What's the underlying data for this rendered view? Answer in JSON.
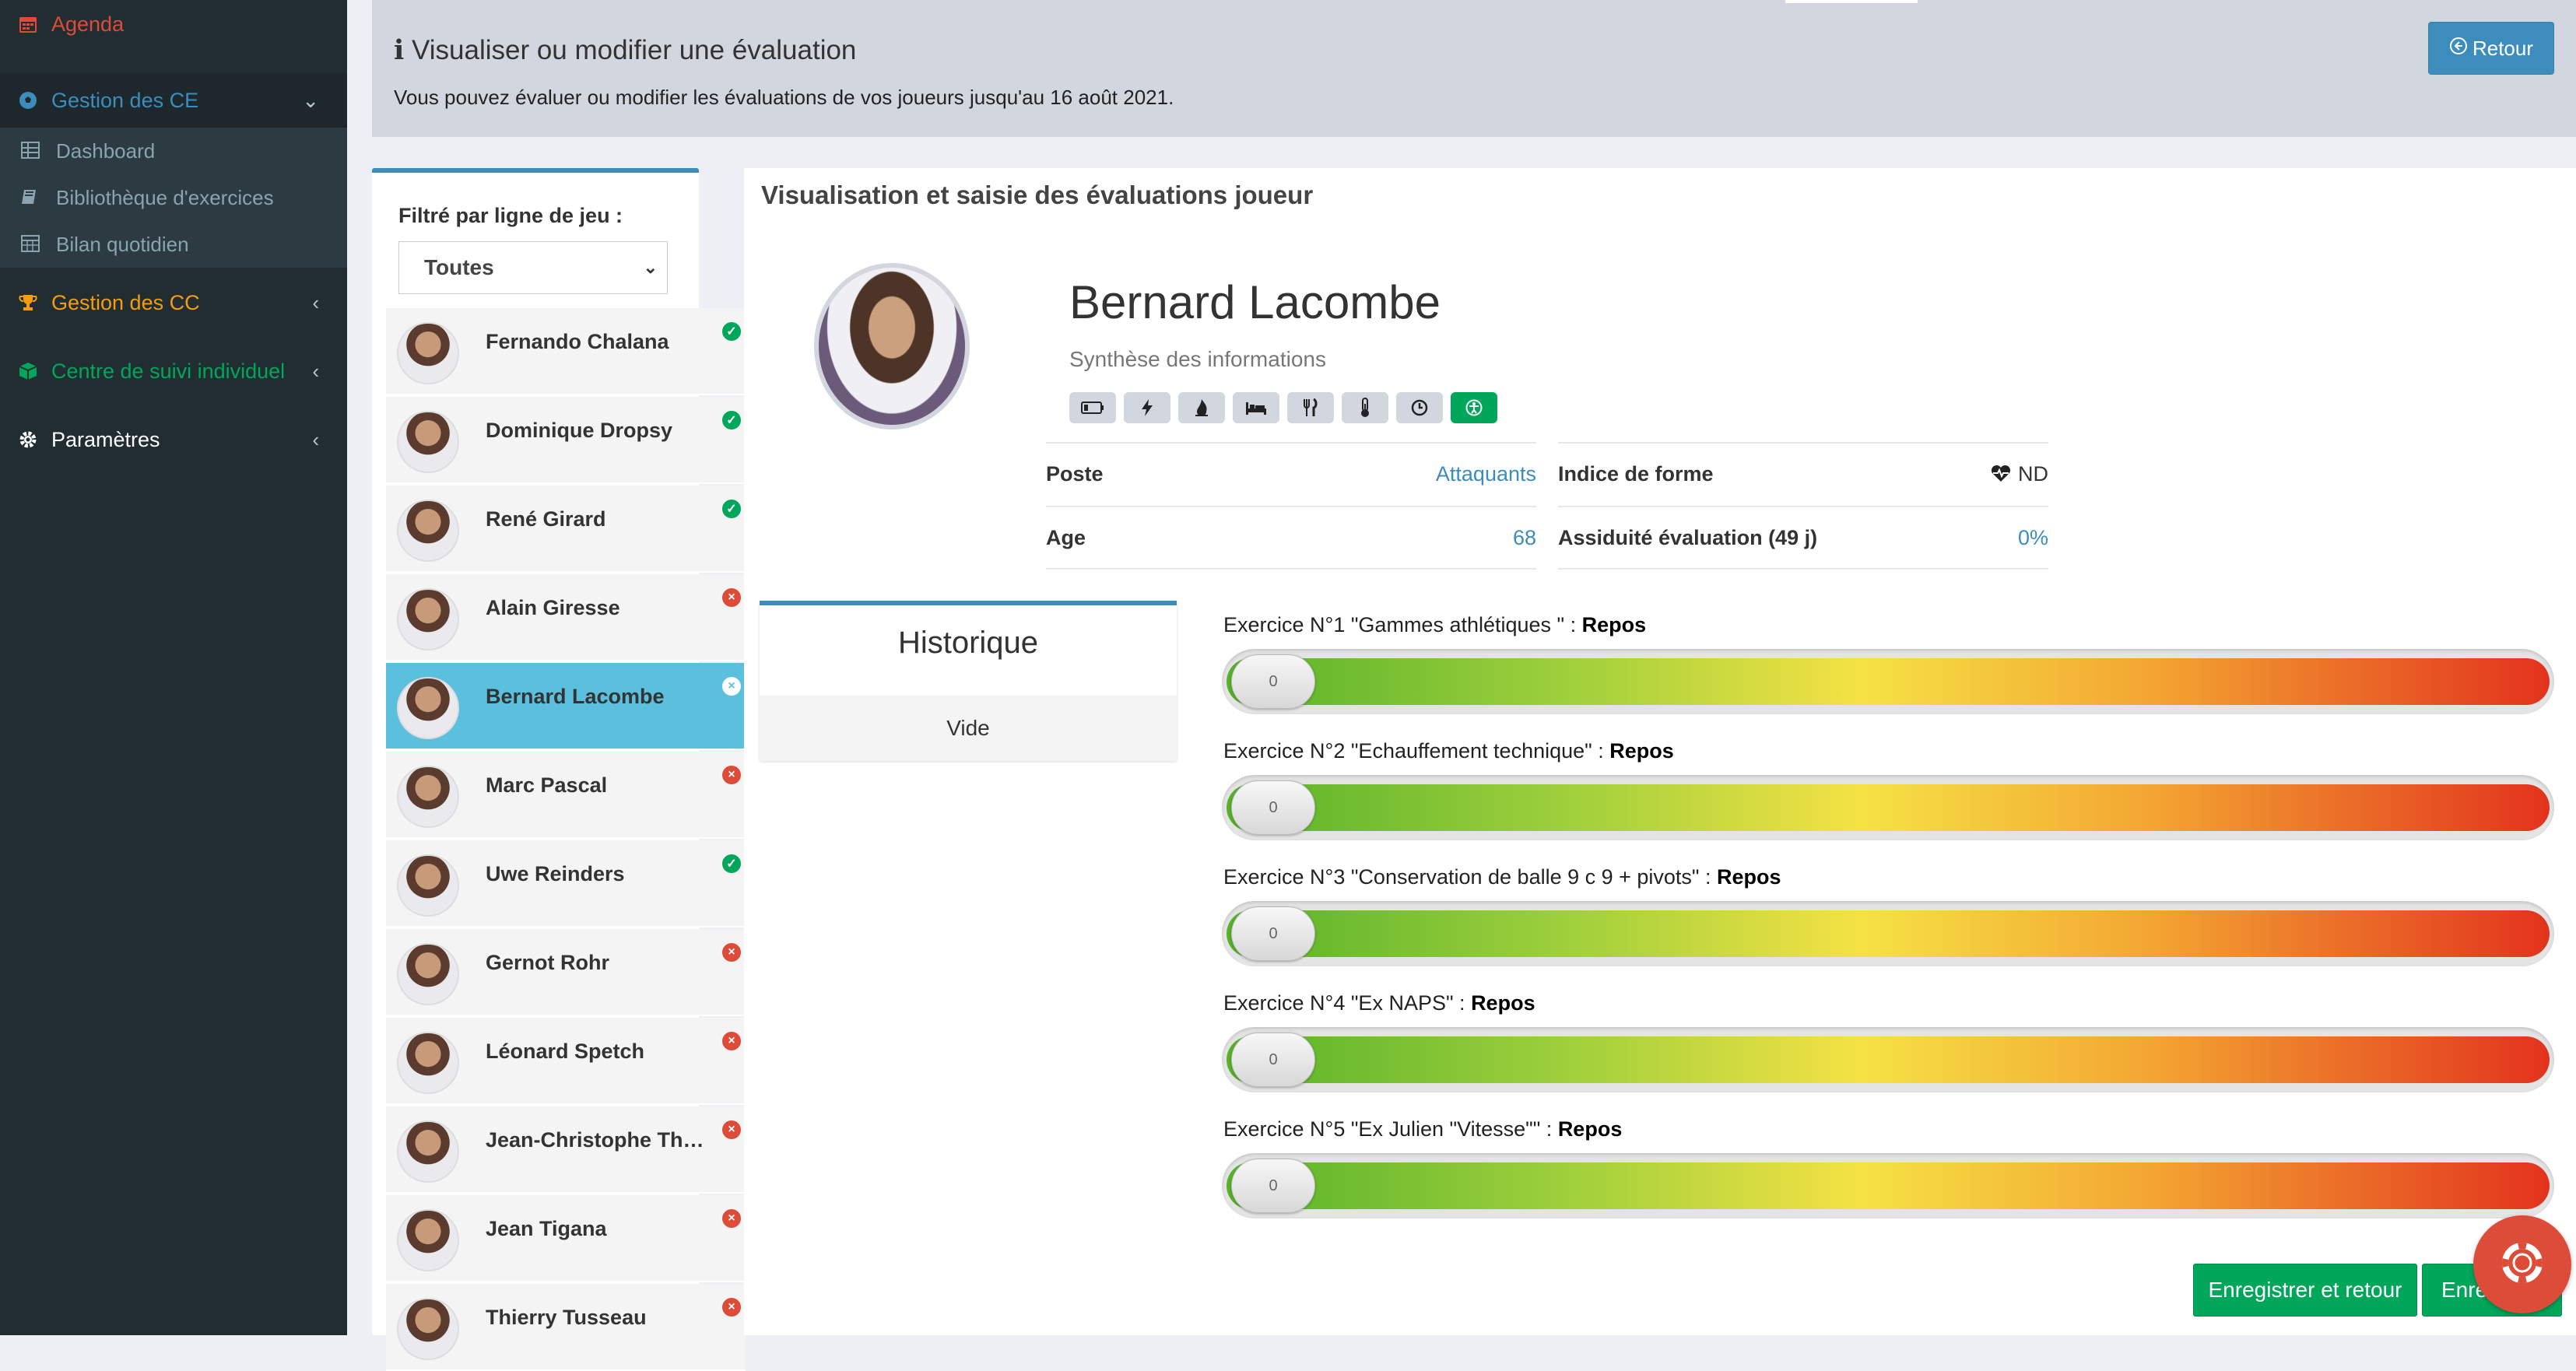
{
  "sidebar": {
    "agenda": "Agenda",
    "gestion_ce": "Gestion des CE",
    "sub_items": [
      {
        "label": "Dashboard",
        "icon": "table-icon"
      },
      {
        "label": "Bibliothèque d'exercices",
        "icon": "book-icon"
      },
      {
        "label": "Bilan quotidien",
        "icon": "calendar-grid-icon"
      }
    ],
    "gestion_cc": "Gestion des CC",
    "centre_suivi": "Centre de suivi individuel",
    "parametres": "Paramètres"
  },
  "header": {
    "title": "Visualiser ou modifier une évaluation",
    "subtitle": "Vous pouvez évaluer ou modifier les évaluations de vos joueurs jusqu'au 16 août 2021.",
    "retour_button": "Retour"
  },
  "filter": {
    "label": "Filtré par ligne de jeu :",
    "selected": "Toutes"
  },
  "players": [
    {
      "name": "Fernando Chalana",
      "status": "ok"
    },
    {
      "name": "Dominique Dropsy",
      "status": "ok"
    },
    {
      "name": "René Girard",
      "status": "ok"
    },
    {
      "name": "Alain Giresse",
      "status": "ko"
    },
    {
      "name": "Bernard Lacombe",
      "status": "ko",
      "active": true
    },
    {
      "name": "Marc Pascal",
      "status": "ko"
    },
    {
      "name": "Uwe Reinders",
      "status": "ok"
    },
    {
      "name": "Gernot Rohr",
      "status": "ko"
    },
    {
      "name": "Léonard Spetch",
      "status": "ko"
    },
    {
      "name": "Jean-Christophe Thouvenel",
      "status": "ko"
    },
    {
      "name": "Jean Tigana",
      "status": "ko"
    },
    {
      "name": "Thierry Tusseau",
      "status": "ko"
    }
  ],
  "main": {
    "title": "Visualisation et saisie des évaluations joueur",
    "player_name": "Bernard Lacombe",
    "synthesis": "Synthèse des informations",
    "icons": [
      "battery-icon",
      "bolt-icon",
      "fire-icon",
      "bed-icon",
      "utensils-icon",
      "thermometer-icon",
      "clock-icon",
      "accessibility-icon"
    ],
    "info": {
      "poste_label": "Poste",
      "poste_value": "Attaquants",
      "age_label": "Age",
      "age_value": "68",
      "forme_label": "Indice de forme",
      "forme_value": "ND",
      "assiduite_label": "Assiduité évaluation (49 j)",
      "assiduite_value": "0%"
    }
  },
  "historique": {
    "title": "Historique",
    "empty": "Vide"
  },
  "exercises": [
    {
      "prefix": "Exercice N°1 \"Gammes athlétiques \" : ",
      "status": "Repos",
      "value": "0"
    },
    {
      "prefix": "Exercice N°2 \"Echauffement technique\" : ",
      "status": "Repos",
      "value": "0"
    },
    {
      "prefix": "Exercice N°3 \"Conservation de balle 9 c 9 + pivots\" : ",
      "status": "Repos",
      "value": "0"
    },
    {
      "prefix": "Exercice N°4 \"Ex NAPS\" : ",
      "status": "Repos",
      "value": "0"
    },
    {
      "prefix": "Exercice N°5 \"Ex Julien \"Vitesse\"\" : ",
      "status": "Repos",
      "value": "0"
    }
  ],
  "buttons": {
    "save_return": "Enregistrer et retour",
    "save": "Enreg"
  },
  "colors": {
    "primary": "#3c8dbc",
    "success": "#00a65a",
    "danger": "#dd4b39",
    "warning": "#f39c12",
    "sidebar_bg": "#222d32"
  }
}
